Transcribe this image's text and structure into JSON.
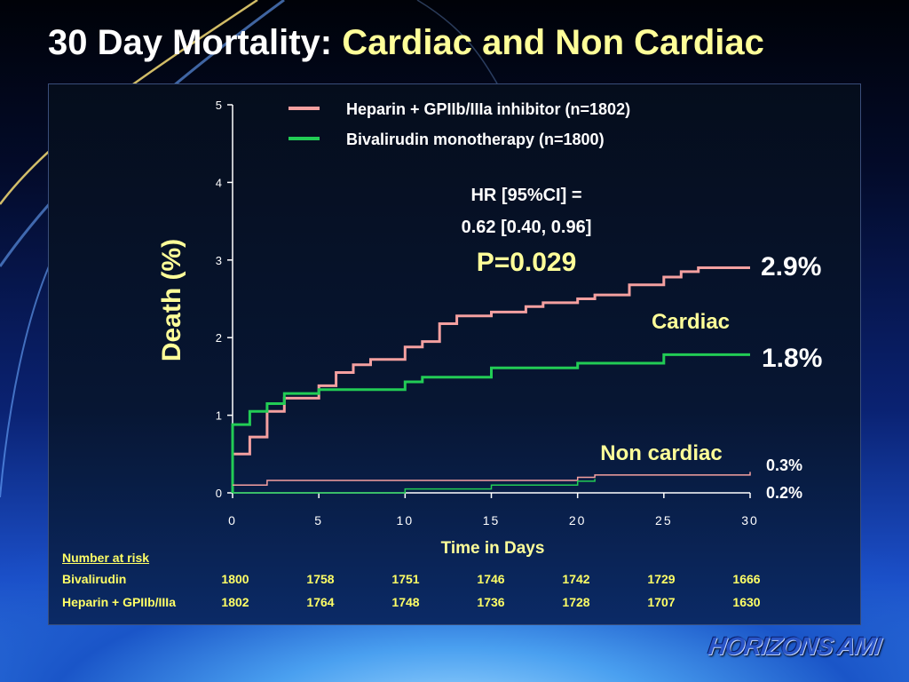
{
  "slide": {
    "title_main": "30 Day Mortality: ",
    "title_highlight": "Cardiac and Non Cardiac",
    "logo": "HORIZONS AMI"
  },
  "colors": {
    "heparin": "#f4a0a0",
    "bivalirudin": "#22cc55",
    "annotation": "#ffff99",
    "axis": "#ffffff"
  },
  "chart_data": {
    "type": "line",
    "xlabel": "Time in Days",
    "ylabel": "Death (%)",
    "xlim": [
      0,
      30
    ],
    "ylim": [
      0,
      5
    ],
    "xticks": [
      0,
      5,
      10,
      15,
      20,
      25,
      30
    ],
    "yticks": [
      0,
      1,
      2,
      3,
      4,
      5
    ],
    "legend": [
      {
        "label": "Heparin + GPIIb/IIIa inhibitor (n=1802)",
        "color": "#f4a0a0"
      },
      {
        "label": "Bivalirudin monotherapy (n=1800)",
        "color": "#22cc55"
      }
    ],
    "series": [
      {
        "name": "Heparin + GPIIb/IIIa inhibitor (n=1802)",
        "group": "Cardiac",
        "color": "#f4a0a0",
        "width": 3,
        "points": [
          [
            0,
            0
          ],
          [
            0,
            0.5
          ],
          [
            1,
            0.5
          ],
          [
            1,
            0.72
          ],
          [
            2,
            0.72
          ],
          [
            2,
            1.05
          ],
          [
            3,
            1.05
          ],
          [
            3,
            1.22
          ],
          [
            5,
            1.22
          ],
          [
            5,
            1.38
          ],
          [
            6,
            1.38
          ],
          [
            6,
            1.55
          ],
          [
            7,
            1.55
          ],
          [
            7,
            1.65
          ],
          [
            8,
            1.65
          ],
          [
            8,
            1.72
          ],
          [
            10,
            1.72
          ],
          [
            10,
            1.88
          ],
          [
            11,
            1.88
          ],
          [
            11,
            1.95
          ],
          [
            12,
            1.95
          ],
          [
            12,
            2.18
          ],
          [
            13,
            2.18
          ],
          [
            13,
            2.28
          ],
          [
            15,
            2.28
          ],
          [
            15,
            2.33
          ],
          [
            17,
            2.33
          ],
          [
            17,
            2.4
          ],
          [
            18,
            2.4
          ],
          [
            18,
            2.45
          ],
          [
            20,
            2.45
          ],
          [
            20,
            2.5
          ],
          [
            21,
            2.5
          ],
          [
            21,
            2.55
          ],
          [
            23,
            2.55
          ],
          [
            23,
            2.68
          ],
          [
            25,
            2.68
          ],
          [
            25,
            2.78
          ],
          [
            26,
            2.78
          ],
          [
            26,
            2.85
          ],
          [
            27,
            2.85
          ],
          [
            27,
            2.9
          ],
          [
            30,
            2.9
          ]
        ]
      },
      {
        "name": "Bivalirudin monotherapy (n=1800)",
        "group": "Cardiac",
        "color": "#22cc55",
        "width": 3,
        "points": [
          [
            0,
            0
          ],
          [
            0,
            0.88
          ],
          [
            1,
            0.88
          ],
          [
            1,
            1.05
          ],
          [
            2,
            1.05
          ],
          [
            2,
            1.15
          ],
          [
            3,
            1.15
          ],
          [
            3,
            1.28
          ],
          [
            5,
            1.28
          ],
          [
            5,
            1.33
          ],
          [
            10,
            1.33
          ],
          [
            10,
            1.43
          ],
          [
            11,
            1.43
          ],
          [
            11,
            1.49
          ],
          [
            15,
            1.49
          ],
          [
            15,
            1.61
          ],
          [
            20,
            1.61
          ],
          [
            20,
            1.67
          ],
          [
            25,
            1.67
          ],
          [
            25,
            1.78
          ],
          [
            30,
            1.78
          ]
        ]
      },
      {
        "name": "Heparin + GPIIb/IIIa inhibitor (n=1802)",
        "group": "Non cardiac",
        "color": "#f4a0a0",
        "width": 1.5,
        "points": [
          [
            0,
            0.1
          ],
          [
            2,
            0.1
          ],
          [
            2,
            0.16
          ],
          [
            20,
            0.16
          ],
          [
            20,
            0.2
          ],
          [
            21,
            0.2
          ],
          [
            21,
            0.23
          ],
          [
            30,
            0.23
          ],
          [
            30,
            0.27
          ]
        ]
      },
      {
        "name": "Bivalirudin monotherapy (n=1800)",
        "group": "Non cardiac",
        "color": "#22cc55",
        "width": 1.5,
        "points": [
          [
            0,
            0
          ],
          [
            10,
            0
          ],
          [
            10,
            0.05
          ],
          [
            15,
            0.05
          ],
          [
            15,
            0.1
          ],
          [
            20,
            0.1
          ],
          [
            20,
            0.15
          ],
          [
            21,
            0.15
          ],
          [
            21,
            0.18
          ]
        ]
      }
    ],
    "annotations": {
      "hr_line1": "HR [95%CI] =",
      "hr_line2": "0.62 [0.40, 0.96]",
      "p_value": "P=0.029",
      "cardiac_label": "Cardiac",
      "cardiac_heparin_value": "2.9%",
      "cardiac_bival_value": "1.8%",
      "noncardiac_label": "Non cardiac",
      "noncardiac_heparin_value": "0.3%",
      "noncardiac_bival_value": "0.2%"
    }
  },
  "risk_table": {
    "title": "Number at risk",
    "rows": [
      {
        "label": "Bivalirudin",
        "values": [
          "1800",
          "1758",
          "1751",
          "1746",
          "1742",
          "1729",
          "1666"
        ]
      },
      {
        "label": "Heparin + GPIIb/IIIa",
        "values": [
          "1802",
          "1764",
          "1748",
          "1736",
          "1728",
          "1707",
          "1630"
        ]
      }
    ]
  }
}
